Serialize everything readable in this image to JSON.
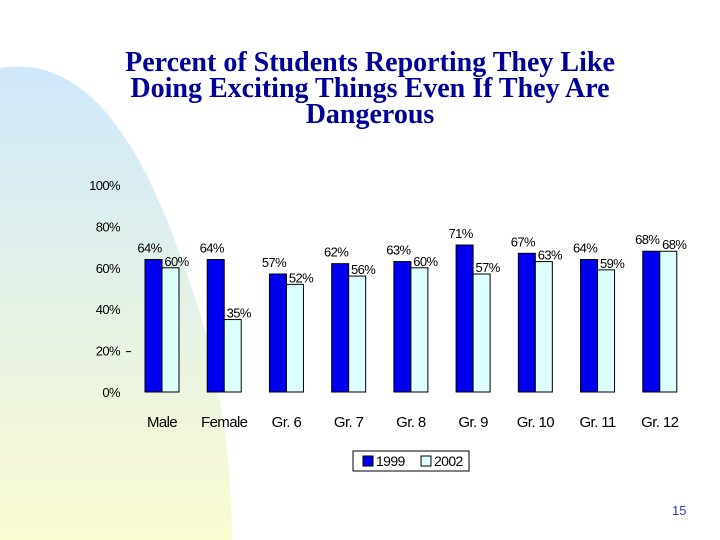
{
  "slide": {
    "title_lines": [
      "Percent of Students Reporting They Like",
      "Doing Exciting Things Even If They Are",
      "Dangerous"
    ],
    "page_number": "15"
  },
  "colors": {
    "title": "#000099",
    "series_1999": "#0000ee",
    "series_2002": "#ddffff",
    "swoosh_top": "#cfe8fb",
    "swoosh_bottom": "#fbfbd2",
    "page_number": "#3333cc"
  },
  "chart_data": {
    "type": "bar",
    "title": "Percent of Students Reporting They Like Doing Exciting Things Even If They Are Dangerous",
    "categories": [
      "Male",
      "Female",
      "Gr. 6",
      "Gr. 7",
      "Gr. 8",
      "Gr. 9",
      "Gr. 10",
      "Gr. 11",
      "Gr. 12"
    ],
    "series": [
      {
        "name": "1999",
        "values": [
          64,
          64,
          57,
          62,
          63,
          71,
          67,
          64,
          68
        ]
      },
      {
        "name": "2002",
        "values": [
          60,
          35,
          52,
          56,
          60,
          57,
          63,
          59,
          68
        ]
      }
    ],
    "data_labels": [
      [
        "64%",
        "64%",
        "57%",
        "62%",
        "63%",
        "71%",
        "67%",
        "64%",
        "68%"
      ],
      [
        "60%",
        "35%",
        "52%",
        "56%",
        "60%",
        "57%",
        "63%",
        "59%",
        "68%"
      ]
    ],
    "yticks": [
      0,
      20,
      40,
      60,
      80,
      100
    ],
    "ytick_labels": [
      "0%",
      "20%",
      "40%",
      "60%",
      "80%",
      "100%"
    ],
    "ylim": [
      0,
      100
    ],
    "xlabel": "",
    "ylabel": "",
    "legend": [
      "1999",
      "2002"
    ],
    "legend_position": "bottom-center",
    "grid": false
  }
}
